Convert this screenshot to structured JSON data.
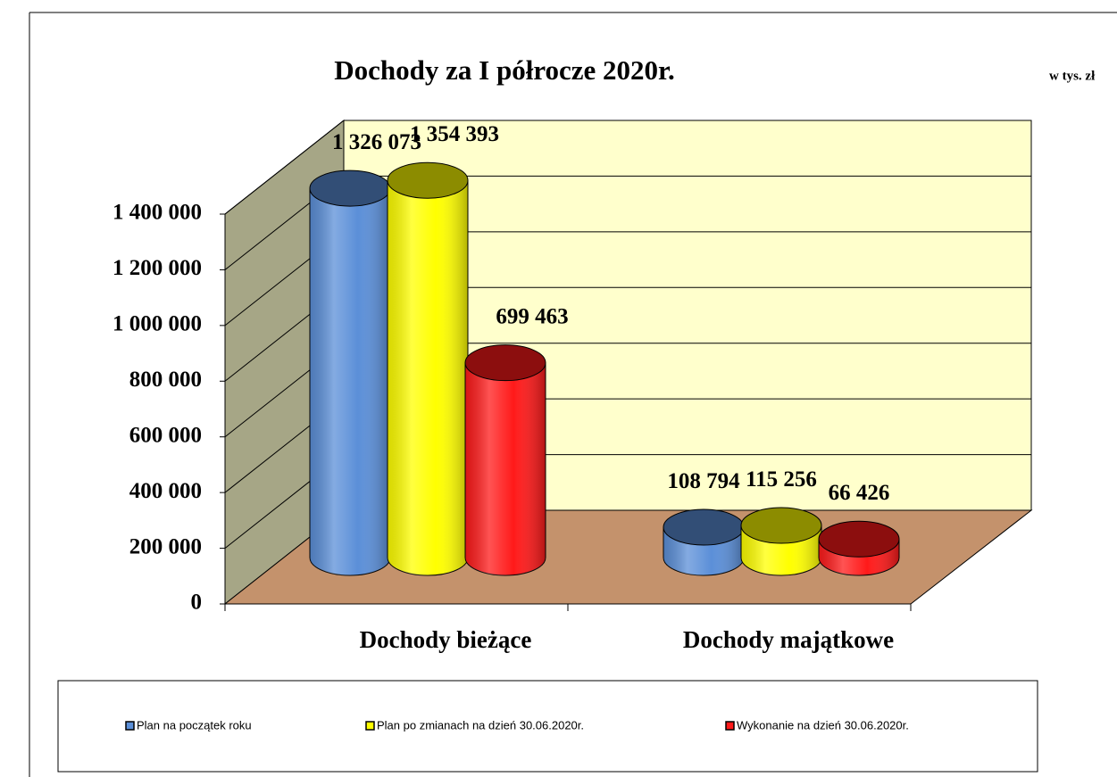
{
  "chart_data": {
    "type": "bar3d-cylinder",
    "title": "Dochody za I półrocze 2020r.",
    "subtitle": "w tys. zł",
    "categories": [
      "Dochody bieżące",
      "Dochody majątkowe"
    ],
    "series": [
      {
        "name": "Plan na początek roku",
        "color": "#5b8fd8",
        "values": [
          1326073,
          108794
        ],
        "value_labels": [
          "1 326 073",
          "108 794"
        ]
      },
      {
        "name": "Plan po zmianach na dzień 30.06.2020r.",
        "color": "#ffff00",
        "values": [
          1354393,
          115256
        ],
        "value_labels": [
          "1 354 393",
          "115 256"
        ]
      },
      {
        "name": "Wykonanie na dzień 30.06.2020r.",
        "color": "#ff1a1a",
        "values": [
          699463,
          66426
        ],
        "value_labels": [
          "699 463",
          "66 426"
        ]
      }
    ],
    "ylim": [
      0,
      1400000
    ],
    "yticks": [
      {
        "value": 0,
        "label": "0"
      },
      {
        "value": 200000,
        "label": "200 000"
      },
      {
        "value": 400000,
        "label": "400 000"
      },
      {
        "value": 600000,
        "label": "600 000"
      },
      {
        "value": 800000,
        "label": "800 000"
      },
      {
        "value": 1000000,
        "label": "1 000 000"
      },
      {
        "value": 1200000,
        "label": "1 200 000"
      },
      {
        "value": 1400000,
        "label": "1 400 000"
      }
    ],
    "grid": true,
    "legend": "bottom"
  }
}
